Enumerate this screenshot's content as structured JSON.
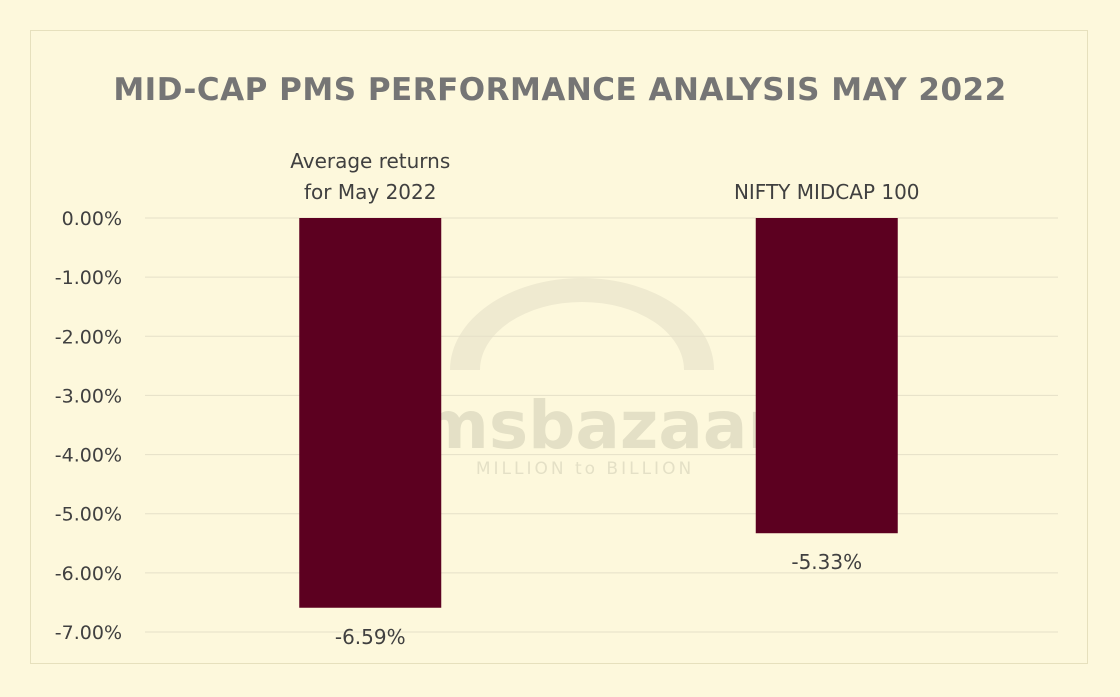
{
  "chart_data": {
    "type": "bar",
    "title": "MID-CAP PMS PERFORMANCE ANALYSIS MAY 2022",
    "categories": [
      "Average returns for May 2022",
      "NIFTY MIDCAP 100"
    ],
    "category_lines": [
      [
        "Average returns",
        "for May 2022"
      ],
      [
        "NIFTY MIDCAP 100"
      ]
    ],
    "values": [
      -6.59,
      -5.33
    ],
    "data_labels": [
      "-6.59%",
      "-5.33%"
    ],
    "ylim": [
      -7,
      0
    ],
    "yticks": [
      0,
      -1,
      -2,
      -3,
      -4,
      -5,
      -6,
      -7
    ],
    "ytick_labels": [
      "0.00%",
      "-1.00%",
      "-2.00%",
      "-3.00%",
      "-4.00%",
      "-5.00%",
      "-6.00%",
      "-7.00%"
    ],
    "grid": true,
    "colors": {
      "bar": "#5c0020",
      "grid": "#e5e0c8",
      "background": "#fdf8dc"
    }
  },
  "watermark": {
    "brand": "msbazaar",
    "tagline": "MILLION to BILLION"
  }
}
